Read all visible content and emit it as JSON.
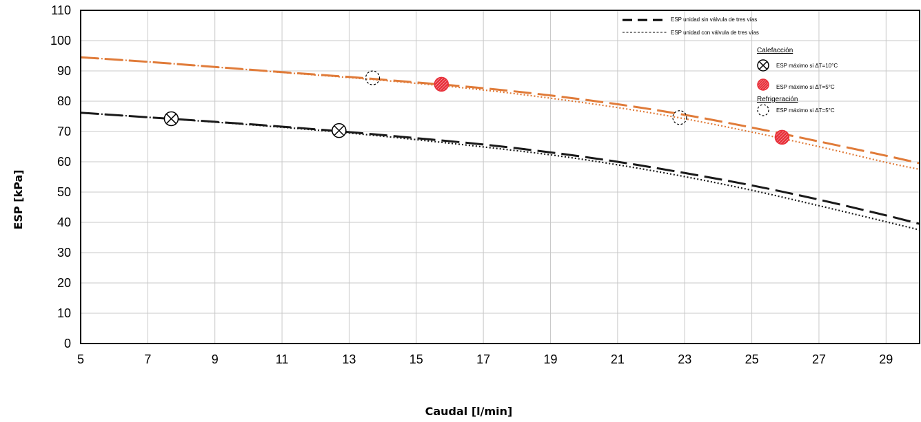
{
  "chart_data": {
    "type": "line",
    "xlabel": "Caudal [l/min]",
    "ylabel": "ESP [kPa]",
    "xlim": [
      5,
      30
    ],
    "ylim": [
      0,
      110
    ],
    "x_ticks": [
      5,
      7,
      9,
      11,
      13,
      15,
      17,
      19,
      21,
      23,
      25,
      27,
      29
    ],
    "y_ticks": [
      0,
      10,
      20,
      30,
      40,
      50,
      60,
      70,
      80,
      90,
      100,
      110
    ],
    "grid": true,
    "legend_placement": "top-right",
    "colors": {
      "orange": "#e07b39",
      "black": "#1a1a1a",
      "marker_red": "#e8303a"
    },
    "legend": {
      "line_items": [
        "ESP unidad sin válvula de tres vías",
        "ESP unidad con válvula de tres vías"
      ],
      "heating_title": "Calefacción",
      "heating_items": [
        "ESP máximo si ΔT=10°C",
        "ESP máximo si ΔT=5°C"
      ],
      "cooling_title": "Refrigeración",
      "cooling_items": [
        "ESP máximo si ΔT=5°C"
      ]
    },
    "series": [
      {
        "unit": "orange",
        "valve": "sin",
        "style": "dashed",
        "color": "#e07b39",
        "x": [
          5,
          7,
          9,
          11,
          13,
          15,
          17,
          19,
          21,
          23,
          25,
          27,
          29,
          30
        ],
        "y": [
          94.5,
          93.0,
          91.3,
          89.6,
          88.0,
          86.2,
          84.3,
          81.9,
          79.0,
          75.5,
          71.3,
          66.7,
          62.0,
          59.5
        ]
      },
      {
        "unit": "orange",
        "valve": "con",
        "style": "dotted",
        "color": "#e07b39",
        "x": [
          5,
          7,
          9,
          11,
          13,
          15,
          17,
          19,
          21,
          23,
          25,
          27,
          29,
          30
        ],
        "y": [
          94.5,
          93.0,
          91.3,
          89.5,
          87.8,
          85.9,
          83.7,
          81.0,
          77.9,
          74.2,
          69.8,
          65.0,
          59.8,
          57.5
        ]
      },
      {
        "unit": "black",
        "valve": "sin",
        "style": "dashed",
        "color": "#1a1a1a",
        "x": [
          5,
          7,
          9,
          11,
          13,
          15,
          17,
          19,
          21,
          23,
          25,
          27,
          29,
          30
        ],
        "y": [
          76.2,
          74.7,
          73.2,
          71.6,
          69.8,
          67.8,
          65.7,
          63.1,
          60.0,
          56.3,
          52.2,
          47.5,
          42.3,
          39.5
        ]
      },
      {
        "unit": "black",
        "valve": "con",
        "style": "dotted",
        "color": "#1a1a1a",
        "x": [
          5,
          7,
          9,
          11,
          13,
          15,
          17,
          19,
          21,
          23,
          25,
          27,
          29,
          30
        ],
        "y": [
          76.2,
          74.7,
          73.1,
          71.4,
          69.5,
          67.3,
          64.9,
          62.3,
          59.0,
          55.1,
          50.6,
          45.5,
          40.2,
          37.5
        ]
      }
    ],
    "markers": [
      {
        "kind": "heating_dt10",
        "x": 7.7,
        "y": 74.2
      },
      {
        "kind": "heating_dt10",
        "x": 12.7,
        "y": 70.3
      },
      {
        "kind": "heating_dt5",
        "x": 15.75,
        "y": 85.6
      },
      {
        "kind": "heating_dt5",
        "x": 25.9,
        "y": 68.1
      },
      {
        "kind": "cooling_dt5",
        "x": 13.7,
        "y": 87.7
      },
      {
        "kind": "cooling_dt5",
        "x": 22.85,
        "y": 74.6
      }
    ]
  }
}
